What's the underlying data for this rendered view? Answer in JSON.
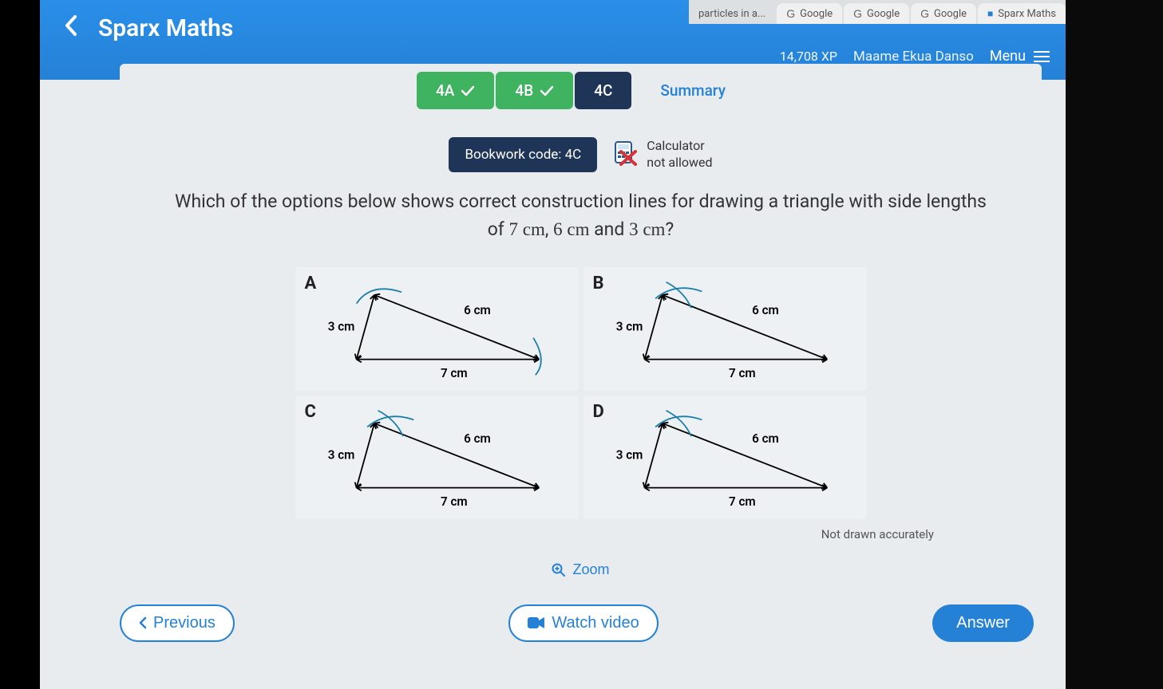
{
  "browser": {
    "tabs": [
      {
        "label": "particles in a...",
        "icon": ""
      },
      {
        "label": "Google",
        "icon": "G"
      },
      {
        "label": "Google",
        "icon": "G"
      },
      {
        "label": "Google",
        "icon": "G"
      },
      {
        "label": "Sparx Maths",
        "icon": "■"
      }
    ]
  },
  "header": {
    "brand": "Sparx Maths",
    "xp": "14,708 XP",
    "username": "Maame Ekua Danso",
    "menu_label": "Menu"
  },
  "progress": {
    "tabs": [
      {
        "id": "4a",
        "label": "4A",
        "state": "done"
      },
      {
        "id": "4b",
        "label": "4B",
        "state": "done"
      },
      {
        "id": "4c",
        "label": "4C",
        "state": "current"
      }
    ],
    "summary_label": "Summary"
  },
  "bookwork": {
    "label": "Bookwork code: 4C"
  },
  "calculator": {
    "line1": "Calculator",
    "line2": "not allowed"
  },
  "question": {
    "text_part1": "Which of the options below shows correct construction lines for drawing a triangle with side lengths of ",
    "m1": "7 cm",
    "sep1": ", ",
    "m2": "6 cm",
    "sep2": " and ",
    "m3": "3 cm",
    "qmark": "?"
  },
  "options": {
    "disclaimer": "Not drawn accurately",
    "items": [
      {
        "letter": "A",
        "side_top": "6 cm",
        "side_left": "3 cm",
        "side_bottom": "7 cm",
        "arc_left": true,
        "arc_right": true,
        "arc_offset_left": false
      },
      {
        "letter": "B",
        "side_top": "6 cm",
        "side_left": "3 cm",
        "side_bottom": "7 cm",
        "arc_left": true,
        "arc_right": false,
        "arc_offset_left": true
      },
      {
        "letter": "C",
        "side_top": "6 cm",
        "side_left": "3 cm",
        "side_bottom": "7 cm",
        "arc_left": false,
        "arc_right": false,
        "arc_offset_left": true
      },
      {
        "letter": "D",
        "side_top": "6 cm",
        "side_left": "3 cm",
        "side_bottom": "7 cm",
        "arc_left": true,
        "arc_right": false,
        "arc_offset_left": true
      }
    ],
    "colors": {
      "stroke": "#000000",
      "arc": "#1a7fa8",
      "label": "#000000"
    }
  },
  "zoom_label": "Zoom",
  "buttons": {
    "previous": "Previous",
    "watch_video": "Watch video",
    "answer": "Answer"
  }
}
